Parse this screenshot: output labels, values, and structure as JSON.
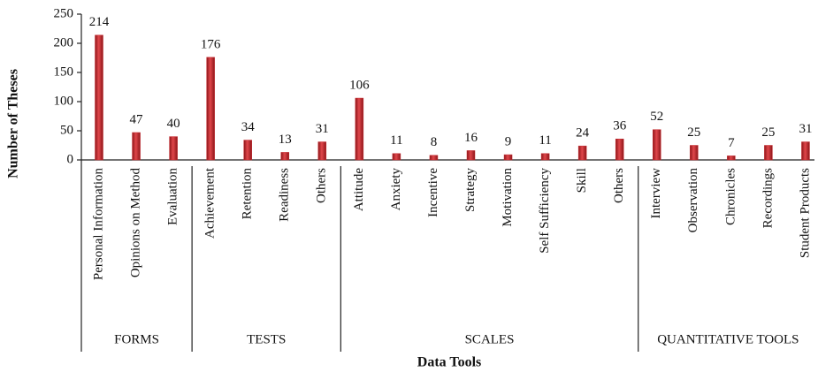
{
  "chart_data": {
    "type": "bar",
    "xlabel": "Data Tools",
    "ylabel": "Number of Theses",
    "color": "#c62a2f",
    "ylim": [
      0,
      250
    ],
    "yticks": [
      0,
      50,
      100,
      150,
      200,
      250
    ],
    "groups": [
      {
        "name": "FORMS",
        "categories": [
          "Personal Information",
          "Opinions on Method",
          "Evaluation"
        ],
        "values": [
          214,
          47,
          40
        ]
      },
      {
        "name": "TESTS",
        "categories": [
          "Achievement",
          "Retention",
          "Readiness",
          "Others"
        ],
        "values": [
          176,
          34,
          13,
          31
        ]
      },
      {
        "name": "SCALES",
        "categories": [
          "Attitude",
          "Anxiety",
          "Incentive",
          "Strategy",
          "Motivation",
          "Self Sufficiency",
          "Skill",
          "Others"
        ],
        "values": [
          106,
          11,
          8,
          16,
          9,
          11,
          24,
          36
        ]
      },
      {
        "name": "QUANTITATIVE TOOLS",
        "categories": [
          "Interview",
          "Observation",
          "Chronicles",
          "Recordings",
          "Student Products"
        ],
        "values": [
          52,
          25,
          7,
          25,
          31
        ]
      }
    ]
  }
}
